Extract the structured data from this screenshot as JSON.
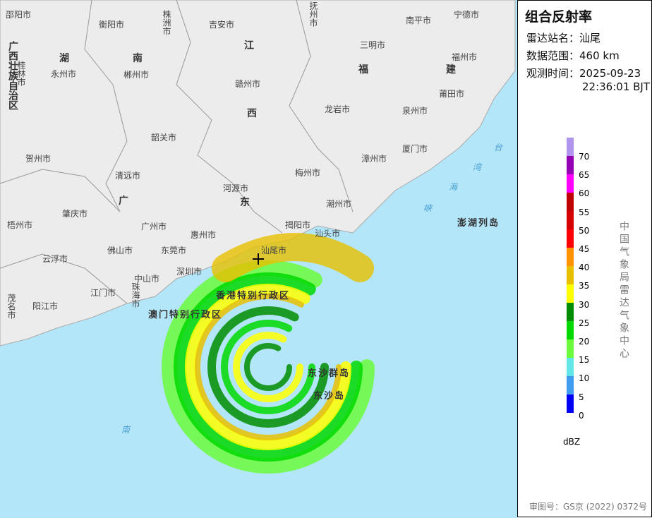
{
  "panel": {
    "title": "组合反射率",
    "station_label": "雷达站名：",
    "station": "汕尾",
    "range_label": "数据范围：",
    "range": "460 km",
    "time_label": "观测时间：",
    "date": "2025-09-23",
    "time": "22:36:01 BJT",
    "unit": "dBZ",
    "organization": "中国气象局雷达气象中心",
    "approval": "审图号：GS京 (2022) 0372号"
  },
  "legend": [
    {
      "value": "",
      "color": "#b094ee"
    },
    {
      "value": "70",
      "color": "#9600b4"
    },
    {
      "value": "65",
      "color": "#ff00ff"
    },
    {
      "value": "60",
      "color": "#c00000"
    },
    {
      "value": "55",
      "color": "#d60000"
    },
    {
      "value": "50",
      "color": "#ff0000"
    },
    {
      "value": "45",
      "color": "#ff9000"
    },
    {
      "value": "40",
      "color": "#e7c000"
    },
    {
      "value": "35",
      "color": "#ffff00"
    },
    {
      "value": "30",
      "color": "#008c00"
    },
    {
      "value": "25",
      "color": "#00d800"
    },
    {
      "value": "20",
      "color": "#6cfa3c"
    },
    {
      "value": "15",
      "color": "#63e6e8"
    },
    {
      "value": "10",
      "color": "#409cf0"
    },
    {
      "value": "5",
      "color": "#0000f4"
    },
    {
      "value": "0",
      "color": ""
    }
  ],
  "map": {
    "cities": [
      "邵阳市",
      "衡阳市",
      "株洲市",
      "吉安市",
      "抚州市",
      "南平市",
      "宁德市",
      "三明市",
      "福州市",
      "桂林市",
      "永州市",
      "郴州市",
      "赣州市",
      "龙岩市",
      "泉州市",
      "莆田市",
      "韶关市",
      "贺州市",
      "清远市",
      "河源市",
      "梅州市",
      "漳州市",
      "厦门市",
      "潮州市",
      "揭阳市",
      "汕头市",
      "汕尾市",
      "惠州市",
      "广州市",
      "肇庆市",
      "梧州市",
      "佛山市",
      "东莞市",
      "云浮市",
      "中山市",
      "深圳市",
      "江门市",
      "珠海市",
      "茂名市",
      "阳江市"
    ],
    "provinces": [
      "广西壮族自治区",
      "湖",
      "南",
      "江",
      "西",
      "福",
      "建",
      "广",
      "东"
    ],
    "regions": [
      "香港特别行政区",
      "澳门特别行政区",
      "东沙群岛",
      "东沙岛",
      "澎湖列岛"
    ],
    "seas": [
      "台",
      "湾",
      "海",
      "峡",
      "南"
    ]
  }
}
